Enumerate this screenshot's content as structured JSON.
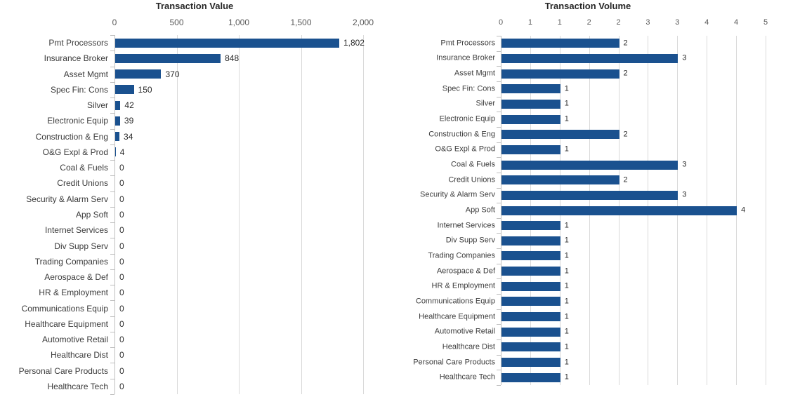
{
  "palette": {
    "bar": "#1A518F",
    "gridline": "#D9D9D9",
    "axis_line": "#BFBFBF",
    "tick_label": "#595959",
    "category_label": "#3B3B3B",
    "value_label": "#2B2B2B",
    "title": "#262626",
    "background": "#FFFFFF"
  },
  "chart_data": [
    {
      "type": "bar",
      "orientation": "horizontal",
      "title": "Transaction Value",
      "legend_position": "none",
      "grid": true,
      "categories": [
        "Pmt Processors",
        "Insurance Broker",
        "Asset Mgmt",
        "Spec Fin: Cons",
        "Silver",
        "Electronic Equip",
        "Construction & Eng",
        "O&G Expl & Prod",
        "Coal & Fuels",
        "Credit Unions",
        "Security & Alarm Serv",
        "App Soft",
        "Internet Services",
        "Div Supp Serv",
        "Trading Companies",
        "Aerospace & Def",
        "HR & Employment",
        "Communications Equip",
        "Healthcare Equipment",
        "Automotive Retail",
        "Healthcare Dist",
        "Personal Care Products",
        "Healthcare Tech"
      ],
      "values": [
        1802,
        848,
        370,
        150,
        42,
        39,
        34,
        4,
        0,
        0,
        0,
        0,
        0,
        0,
        0,
        0,
        0,
        0,
        0,
        0,
        0,
        0,
        0
      ],
      "value_labels": [
        "1,802",
        "848",
        "370",
        "150",
        "42",
        "39",
        "34",
        "4",
        "0",
        "0",
        "0",
        "0",
        "0",
        "0",
        "0",
        "0",
        "0",
        "0",
        "0",
        "0",
        "0",
        "0",
        "0"
      ],
      "xlabel": "",
      "ylabel": "",
      "xlim": [
        0,
        2000
      ],
      "axis_tick_values": [
        0,
        500,
        1000,
        1500,
        2000
      ],
      "axis_tick_labels": [
        "0",
        "500",
        "1,000",
        "1,500",
        "2,000"
      ]
    },
    {
      "type": "bar",
      "orientation": "horizontal",
      "title": "Transaction Volume",
      "legend_position": "none",
      "grid": true,
      "categories": [
        "Pmt Processors",
        "Insurance Broker",
        "Asset Mgmt",
        "Spec Fin: Cons",
        "Silver",
        "Electronic Equip",
        "Construction & Eng",
        "O&G Expl & Prod",
        "Coal & Fuels",
        "Credit Unions",
        "Security & Alarm Serv",
        "App Soft",
        "Internet Services",
        "Div Supp Serv",
        "Trading Companies",
        "Aerospace & Def",
        "HR & Employment",
        "Communications Equip",
        "Healthcare Equipment",
        "Automotive Retail",
        "Healthcare Dist",
        "Personal Care Products",
        "Healthcare Tech"
      ],
      "values": [
        2,
        3,
        2,
        1,
        1,
        1,
        2,
        1,
        3,
        2,
        3,
        4,
        1,
        1,
        1,
        1,
        1,
        1,
        1,
        1,
        1,
        1,
        1
      ],
      "value_labels": [
        "2",
        "3",
        "2",
        "1",
        "1",
        "1",
        "2",
        "1",
        "3",
        "2",
        "3",
        "4",
        "1",
        "1",
        "1",
        "1",
        "1",
        "1",
        "1",
        "1",
        "1",
        "1",
        "1"
      ],
      "xlabel": "",
      "ylabel": "",
      "xlim": [
        0,
        4.5
      ],
      "axis_tick_values": [
        0,
        0.5,
        1,
        1.5,
        2,
        2.5,
        3,
        3.5,
        4,
        4.5
      ],
      "axis_tick_labels": [
        "0",
        "1",
        "1",
        "2",
        "2",
        "3",
        "3",
        "4",
        "4",
        "5"
      ]
    }
  ]
}
